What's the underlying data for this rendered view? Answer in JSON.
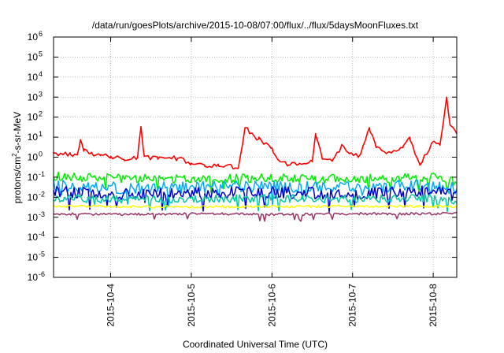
{
  "chart_data": {
    "type": "line",
    "title": "/data/run/goesPlots/archive/2015-10-08/07:00/flux/../flux/5daysMoonFluxes.txt",
    "xlabel": "Coordinated Universal Time (UTC)",
    "ylabel": "protons/cm²-s-sr-MeV",
    "ylabel_main": "protons/cm",
    "ylabel_sup": "2",
    "ylabel_rest": "-s-sr-MeV",
    "y_scale": "log",
    "y_range": [
      1e-06,
      1000000.0
    ],
    "y_ticks": [
      {
        "value": 1e-06,
        "base": "10",
        "exp": "-6"
      },
      {
        "value": 1e-05,
        "base": "10",
        "exp": "-5"
      },
      {
        "value": 0.0001,
        "base": "10",
        "exp": "-4"
      },
      {
        "value": 0.001,
        "base": "10",
        "exp": "-3"
      },
      {
        "value": 0.01,
        "base": "10",
        "exp": "-2"
      },
      {
        "value": 0.1,
        "base": "10",
        "exp": "-1"
      },
      {
        "value": 1,
        "base": "10",
        "exp": "0"
      },
      {
        "value": 10,
        "base": "10",
        "exp": "1"
      },
      {
        "value": 100,
        "base": "10",
        "exp": "2"
      },
      {
        "value": 1000,
        "base": "10",
        "exp": "3"
      },
      {
        "value": 10000,
        "base": "10",
        "exp": "4"
      },
      {
        "value": 100000,
        "base": "10",
        "exp": "5"
      },
      {
        "value": 1000000,
        "base": "10",
        "exp": "6"
      }
    ],
    "x_range": [
      "2015-10-03 07:00",
      "2015-10-08 07:00"
    ],
    "x_ticks": [
      {
        "value": "2015-10-04 00:00",
        "label": "2015-10-4"
      },
      {
        "value": "2015-10-05 00:00",
        "label": "2015-10-5"
      },
      {
        "value": "2015-10-06 00:00",
        "label": "2015-10-6"
      },
      {
        "value": "2015-10-07 00:00",
        "label": "2015-10-7"
      },
      {
        "value": "2015-10-08 00:00",
        "label": "2015-10-8"
      }
    ],
    "grid": true,
    "series": [
      {
        "color": "#ff0000",
        "points": [
          [
            "2015-10-03 07:00",
            1.6
          ],
          [
            "2015-10-03 12:00",
            1.4
          ],
          [
            "2015-10-03 18:00",
            1.5
          ],
          [
            "2015-10-04 00:00",
            1.1
          ],
          [
            "2015-10-03 14:00",
            1.3
          ],
          [
            "2015-10-03 15:00",
            7.5
          ],
          [
            "2015-10-03 16:00",
            2.0
          ],
          [
            "2015-10-03 21:00",
            1.2
          ],
          [
            "2015-10-04 04:00",
            0.75
          ],
          [
            "2015-10-04 08:00",
            0.95
          ],
          [
            "2015-10-04 09:00",
            30
          ],
          [
            "2015-10-04 10:00",
            1.1
          ],
          [
            "2015-10-04 14:00",
            0.8
          ],
          [
            "2015-10-04 20:00",
            0.9
          ],
          [
            "2015-10-05 00:00",
            0.5
          ],
          [
            "2015-10-05 04:00",
            0.35
          ],
          [
            "2015-10-05 08:00",
            0.45
          ],
          [
            "2015-10-05 14:00",
            0.3
          ],
          [
            "2015-10-05 16:00",
            30
          ],
          [
            "2015-10-05 20:00",
            8
          ],
          [
            "2015-10-06 00:00",
            3.0
          ],
          [
            "2015-10-06 02:00",
            0.7
          ],
          [
            "2015-10-06 05:00",
            0.4
          ],
          [
            "2015-10-06 08:00",
            0.45
          ],
          [
            "2015-10-06 12:00",
            0.6
          ],
          [
            "2015-10-06 13:00",
            15
          ],
          [
            "2015-10-06 15:00",
            0.8
          ],
          [
            "2015-10-06 18:00",
            0.7
          ],
          [
            "2015-10-06 21:00",
            4.0
          ],
          [
            "2015-10-06 23:00",
            1.5
          ],
          [
            "2015-10-07 02:00",
            1.2
          ],
          [
            "2015-10-07 05:00",
            30
          ],
          [
            "2015-10-07 07:00",
            3.0
          ],
          [
            "2015-10-07 10:00",
            1.5
          ],
          [
            "2015-10-07 15:00",
            3.0
          ],
          [
            "2015-10-07 17:00",
            10
          ],
          [
            "2015-10-07 20:00",
            0.4
          ],
          [
            "2015-10-08 00:00",
            6.0
          ],
          [
            "2015-10-08 02:00",
            4.0
          ],
          [
            "2015-10-08 04:00",
            1000
          ],
          [
            "2015-10-08 05:00",
            40
          ],
          [
            "2015-10-08 07:00",
            15
          ]
        ]
      },
      {
        "color": "#00ee00",
        "points": [
          [
            "2015-10-03 07:00",
            0.11
          ],
          [
            "2015-10-04 00:00",
            0.09
          ],
          [
            "2015-10-05 00:00",
            0.08
          ],
          [
            "2015-10-06 00:00",
            0.09
          ],
          [
            "2015-10-07 00:00",
            0.08
          ],
          [
            "2015-10-08 00:00",
            0.1
          ],
          [
            "2015-10-08 07:00",
            0.06
          ]
        ]
      },
      {
        "color": "#00aaff",
        "points": [
          [
            "2015-10-03 07:00",
            0.04
          ],
          [
            "2015-10-04 00:00",
            0.03
          ],
          [
            "2015-10-05 00:00",
            0.03
          ],
          [
            "2015-10-06 00:00",
            0.035
          ],
          [
            "2015-10-07 00:00",
            0.03
          ],
          [
            "2015-10-08 00:00",
            0.04
          ],
          [
            "2015-10-08 07:00",
            0.025
          ]
        ]
      },
      {
        "color": "#0000cc",
        "points": [
          [
            "2015-10-03 07:00",
            0.02
          ],
          [
            "2015-10-04 00:00",
            0.015
          ],
          [
            "2015-10-05 00:00",
            0.015
          ],
          [
            "2015-10-06 00:00",
            0.018
          ],
          [
            "2015-10-07 00:00",
            0.015
          ],
          [
            "2015-10-08 00:00",
            0.02
          ],
          [
            "2015-10-08 07:00",
            0.012
          ]
        ]
      },
      {
        "color": "#00c8a0",
        "points": [
          [
            "2015-10-03 07:00",
            0.009
          ],
          [
            "2015-10-04 00:00",
            0.008
          ],
          [
            "2015-10-05 00:00",
            0.008
          ],
          [
            "2015-10-06 00:00",
            0.009
          ],
          [
            "2015-10-07 00:00",
            0.008
          ],
          [
            "2015-10-08 00:00",
            0.009
          ],
          [
            "2015-10-08 07:00",
            0.007
          ]
        ]
      },
      {
        "color": "#ffff00",
        "points": [
          [
            "2015-10-03 07:00",
            0.0035
          ],
          [
            "2015-10-05 00:00",
            0.0033
          ],
          [
            "2015-10-07 00:00",
            0.0035
          ],
          [
            "2015-10-08 07:00",
            0.0034
          ]
        ]
      },
      {
        "color": "#993366",
        "points": [
          [
            "2015-10-03 07:00",
            0.0015
          ],
          [
            "2015-10-04 00:00",
            0.0014
          ],
          [
            "2015-10-05 00:00",
            0.0015
          ],
          [
            "2015-10-06 00:00",
            0.0014
          ],
          [
            "2015-10-07 00:00",
            0.0015
          ],
          [
            "2015-10-08 00:00",
            0.0015
          ],
          [
            "2015-10-08 07:00",
            0.0016
          ]
        ]
      }
    ]
  }
}
